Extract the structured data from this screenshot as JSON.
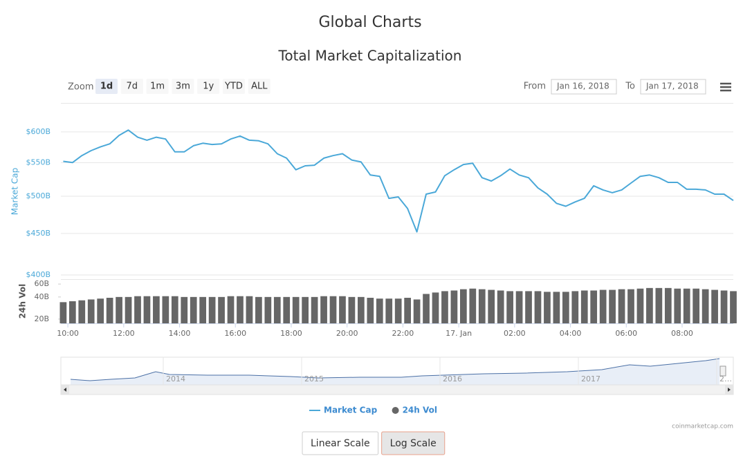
{
  "header": {
    "title": "Global Charts"
  },
  "controls": {
    "zoom_label": "Zoom",
    "zoom_buttons": [
      "1d",
      "7d",
      "1m",
      "3m",
      "1y",
      "YTD",
      "ALL"
    ],
    "selected_zoom": "1d",
    "from_label": "From",
    "from_value": "Jan 16, 2018",
    "to_label": "To",
    "to_value": "Jan 17, 2018"
  },
  "chart_data": {
    "type": "line",
    "title": "Total Market Capitalization",
    "x": [
      "2018-01-16 09:50",
      "2018-01-16 10:10",
      "2018-01-16 10:30",
      "2018-01-16 10:50",
      "2018-01-16 11:10",
      "2018-01-16 11:30",
      "2018-01-16 11:50",
      "2018-01-16 12:10",
      "2018-01-16 12:30",
      "2018-01-16 12:50",
      "2018-01-16 13:10",
      "2018-01-16 13:30",
      "2018-01-16 13:50",
      "2018-01-16 14:10",
      "2018-01-16 14:30",
      "2018-01-16 14:50",
      "2018-01-16 15:10",
      "2018-01-16 15:30",
      "2018-01-16 15:50",
      "2018-01-16 16:10",
      "2018-01-16 16:30",
      "2018-01-16 16:50",
      "2018-01-16 17:10",
      "2018-01-16 17:30",
      "2018-01-16 17:50",
      "2018-01-16 18:10",
      "2018-01-16 18:30",
      "2018-01-16 18:50",
      "2018-01-16 19:10",
      "2018-01-16 19:30",
      "2018-01-16 19:50",
      "2018-01-16 20:10",
      "2018-01-16 20:30",
      "2018-01-16 20:50",
      "2018-01-16 21:10",
      "2018-01-16 21:30",
      "2018-01-16 21:50",
      "2018-01-16 22:10",
      "2018-01-16 22:30",
      "2018-01-16 22:50",
      "2018-01-16 23:10",
      "2018-01-16 23:30",
      "2018-01-16 23:50",
      "2018-01-17 00:10",
      "2018-01-17 00:30",
      "2018-01-17 00:50",
      "2018-01-17 01:10",
      "2018-01-17 01:30",
      "2018-01-17 01:50",
      "2018-01-17 02:10",
      "2018-01-17 02:30",
      "2018-01-17 02:50",
      "2018-01-17 03:10",
      "2018-01-17 03:30",
      "2018-01-17 03:50",
      "2018-01-17 04:10",
      "2018-01-17 04:30",
      "2018-01-17 04:50",
      "2018-01-17 05:10",
      "2018-01-17 05:30",
      "2018-01-17 05:50",
      "2018-01-17 06:10",
      "2018-01-17 06:30",
      "2018-01-17 06:50",
      "2018-01-17 07:10",
      "2018-01-17 07:30",
      "2018-01-17 07:50",
      "2018-01-17 08:10",
      "2018-01-17 08:30",
      "2018-01-17 08:50",
      "2018-01-17 09:10",
      "2018-01-17 09:30",
      "2018-01-17 09:50"
    ],
    "xlim": [
      "2018-01-16 09:45",
      "2018-01-17 09:50"
    ],
    "xticks": [
      {
        "value": "2018-01-16 10:00",
        "label": "10:00"
      },
      {
        "value": "2018-01-16 12:00",
        "label": "12:00"
      },
      {
        "value": "2018-01-16 14:00",
        "label": "14:00"
      },
      {
        "value": "2018-01-16 16:00",
        "label": "16:00"
      },
      {
        "value": "2018-01-16 18:00",
        "label": "18:00"
      },
      {
        "value": "2018-01-16 20:00",
        "label": "20:00"
      },
      {
        "value": "2018-01-16 22:00",
        "label": "22:00"
      },
      {
        "value": "2018-01-17 00:00",
        "label": "17. Jan"
      },
      {
        "value": "2018-01-17 02:00",
        "label": "02:00"
      },
      {
        "value": "2018-01-17 04:00",
        "label": "04:00"
      },
      {
        "value": "2018-01-17 06:00",
        "label": "06:00"
      },
      {
        "value": "2018-01-17 08:00",
        "label": "08:00"
      }
    ],
    "y_label": "Market Cap",
    "ylim": [
      400,
      650
    ],
    "log_scale": true,
    "yticks": [
      {
        "value": 400,
        "label": "$400B"
      },
      {
        "value": 450,
        "label": "$450B"
      },
      {
        "value": 500,
        "label": "$500B"
      },
      {
        "value": 550,
        "label": "$550B"
      },
      {
        "value": 600,
        "label": "$600B"
      }
    ],
    "y2_label": "24h Vol",
    "y2lim": [
      17.5,
      70
    ],
    "y2ticks": [
      {
        "value": 20,
        "label": "20B"
      },
      {
        "value": 40,
        "label": "40B"
      },
      {
        "value": 60,
        "label": "60B"
      }
    ],
    "grid": true,
    "series": [
      {
        "name": "Market Cap",
        "color": "#4aa8d8",
        "values": [
          552,
          550,
          561,
          569,
          575,
          580,
          594,
          603,
          591,
          586,
          591,
          588,
          567,
          567,
          577,
          581,
          579,
          580,
          588,
          593,
          586,
          585,
          580,
          564,
          557,
          539,
          545,
          546,
          557,
          561,
          564,
          554,
          551,
          531,
          529,
          497,
          499,
          483,
          452,
          503,
          506,
          530,
          539,
          547,
          549,
          527,
          522,
          530,
          540,
          531,
          527,
          512,
          503,
          490,
          486,
          492,
          497,
          515,
          509,
          505,
          509,
          519,
          529,
          531,
          527,
          520,
          520,
          510,
          510,
          509,
          503,
          503,
          494
        ]
      },
      {
        "name": "24h Vol",
        "color": "#666666",
        "type": "bar",
        "axis": "y2",
        "values": [
          34,
          35,
          36,
          37,
          38,
          39,
          40,
          40,
          41,
          41,
          41,
          41,
          41,
          40,
          40,
          40,
          40,
          40,
          41,
          41,
          41,
          40,
          40,
          40,
          40,
          40,
          40,
          40,
          41,
          41,
          41,
          40,
          40,
          39,
          38,
          38,
          38,
          39,
          37,
          44,
          46,
          48,
          49,
          51,
          52,
          51,
          50,
          49,
          48,
          48,
          48,
          48,
          47,
          47,
          47,
          48,
          49,
          49,
          50,
          50,
          51,
          51,
          52,
          53,
          53,
          53,
          52,
          52,
          52,
          51,
          50,
          49,
          48
        ]
      }
    ],
    "navigator_labels": [
      "2014",
      "2015",
      "2016",
      "2017",
      "2…"
    ],
    "credit": "coinmarketcap.com"
  },
  "scale_buttons": [
    "Linear Scale",
    "Log Scale"
  ],
  "selected_scale": "Log Scale"
}
